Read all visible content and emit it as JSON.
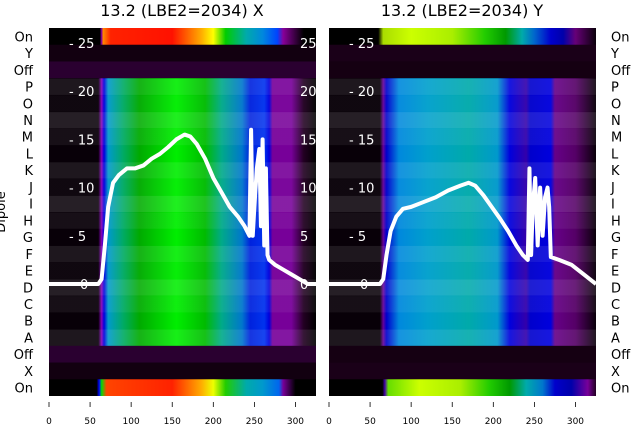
{
  "chart_data": {
    "type": "heatmap",
    "ylabel": "Dipole",
    "row_labels": [
      "On",
      "Y",
      "Off",
      "P",
      "O",
      "N",
      "M",
      "L",
      "K",
      "J",
      "I",
      "H",
      "G",
      "F",
      "E",
      "D",
      "C",
      "B",
      "A",
      "Off",
      "X",
      "On"
    ],
    "xlim": [
      0,
      325
    ],
    "x_ticks": [
      0,
      50,
      100,
      150,
      200,
      250,
      300
    ],
    "line_ylim": [
      0,
      25
    ],
    "line_y_ticks": [
      0,
      5,
      10,
      15,
      20,
      25
    ],
    "panels": [
      {
        "title": "13.2 (LBE2=2034) X",
        "row_kinds": [
          "on",
          "dark",
          "off",
          "main",
          "main",
          "main",
          "main",
          "main",
          "main",
          "main",
          "main",
          "main",
          "main",
          "main",
          "main",
          "main",
          "main",
          "main",
          "main",
          "off",
          "dark",
          "on"
        ],
        "on_top_stops": [
          [
            0,
            "#000000"
          ],
          [
            62,
            "#000000"
          ],
          [
            64,
            "#8800aa"
          ],
          [
            66,
            "#ff8800"
          ],
          [
            75,
            "#ff2200"
          ],
          [
            150,
            "#ff1100"
          ],
          [
            185,
            "#ffaa00"
          ],
          [
            200,
            "#ffff00"
          ],
          [
            215,
            "#00cc00"
          ],
          [
            240,
            "#00aaaa"
          ],
          [
            260,
            "#0088dd"
          ],
          [
            278,
            "#0044ff"
          ],
          [
            285,
            "#880099"
          ],
          [
            310,
            "#000000"
          ],
          [
            325,
            "#000000"
          ]
        ],
        "on_bottom_stops": [
          [
            0,
            "#000000"
          ],
          [
            58,
            "#000000"
          ],
          [
            61,
            "#0000ff"
          ],
          [
            64,
            "#00dd00"
          ],
          [
            70,
            "#ff4400"
          ],
          [
            150,
            "#ff2200"
          ],
          [
            185,
            "#ffaa00"
          ],
          [
            200,
            "#eeff00"
          ],
          [
            215,
            "#22cc00"
          ],
          [
            240,
            "#00aaaa"
          ],
          [
            260,
            "#0099cc"
          ],
          [
            280,
            "#0066ee"
          ],
          [
            285,
            "#770099"
          ],
          [
            300,
            "#000000"
          ],
          [
            325,
            "#000000"
          ]
        ],
        "main_stops": [
          [
            0,
            "#080008"
          ],
          [
            60,
            "#080008"
          ],
          [
            64,
            "#8800bb"
          ],
          [
            67,
            "#0000dd"
          ],
          [
            72,
            "#0099cc"
          ],
          [
            90,
            "#00aa66"
          ],
          [
            110,
            "#00aa00"
          ],
          [
            155,
            "#00ee00"
          ],
          [
            190,
            "#00bb00"
          ],
          [
            210,
            "#00aa88"
          ],
          [
            235,
            "#0077cc"
          ],
          [
            245,
            "#0022dd"
          ],
          [
            262,
            "#0033ee"
          ],
          [
            268,
            "#0000dd"
          ],
          [
            272,
            "#770099"
          ],
          [
            295,
            "#770099"
          ],
          [
            310,
            "#220022"
          ],
          [
            325,
            "#000000"
          ]
        ],
        "off_color": "#2a0030",
        "dark_color": "#120010",
        "line": {
          "x": [
            0,
            60,
            64,
            68,
            72,
            78,
            85,
            95,
            105,
            115,
            125,
            135,
            145,
            155,
            165,
            172,
            180,
            190,
            200,
            210,
            220,
            230,
            238,
            244,
            246,
            248,
            250,
            253,
            256,
            258,
            260,
            262,
            264,
            266,
            268,
            275,
            285,
            295,
            305,
            315,
            325
          ],
          "y": [
            0,
            0,
            0.5,
            4,
            8,
            10.5,
            11.3,
            12,
            12,
            12.3,
            13,
            13.5,
            14.2,
            15,
            15.5,
            15.3,
            14.5,
            13,
            11,
            9.5,
            8,
            7,
            6,
            5,
            16,
            5,
            8,
            12,
            14,
            6,
            15,
            4,
            12,
            3,
            2.5,
            2,
            1.5,
            1,
            0.5,
            0,
            0
          ]
        }
      },
      {
        "title": "13.2 (LBE2=2034) Y",
        "row_kinds": [
          "on",
          "dark",
          "off",
          "main",
          "main",
          "main",
          "main",
          "main",
          "main",
          "main",
          "main",
          "main",
          "main",
          "main",
          "main",
          "main",
          "main",
          "main",
          "main",
          "off",
          "dark",
          "on"
        ],
        "on_top_stops": [
          [
            0,
            "#000000"
          ],
          [
            60,
            "#000000"
          ],
          [
            66,
            "#aadd00"
          ],
          [
            100,
            "#ccff00"
          ],
          [
            150,
            "#aaee00"
          ],
          [
            190,
            "#22cc00"
          ],
          [
            215,
            "#009900"
          ],
          [
            235,
            "#00aaaa"
          ],
          [
            250,
            "#0066cc"
          ],
          [
            270,
            "#0000cc"
          ],
          [
            285,
            "#0000aa"
          ],
          [
            300,
            "#660077"
          ],
          [
            325,
            "#0a000a"
          ]
        ],
        "on_bottom_stops": [
          [
            0,
            "#000000"
          ],
          [
            65,
            "#000000"
          ],
          [
            68,
            "#4400aa"
          ],
          [
            72,
            "#66dd00"
          ],
          [
            110,
            "#ccff00"
          ],
          [
            160,
            "#aaee00"
          ],
          [
            195,
            "#22cc00"
          ],
          [
            220,
            "#009900"
          ],
          [
            240,
            "#00aaaa"
          ],
          [
            260,
            "#0077cc"
          ],
          [
            275,
            "#0000cc"
          ],
          [
            295,
            "#0000aa"
          ],
          [
            315,
            "#770099"
          ],
          [
            325,
            "#220022"
          ]
        ],
        "main_stops": [
          [
            0,
            "#080008"
          ],
          [
            62,
            "#080008"
          ],
          [
            66,
            "#660099"
          ],
          [
            70,
            "#0000cc"
          ],
          [
            85,
            "#0088dd"
          ],
          [
            120,
            "#00a0cc"
          ],
          [
            170,
            "#00aaaa"
          ],
          [
            205,
            "#0099cc"
          ],
          [
            220,
            "#0000dd"
          ],
          [
            240,
            "#3300aa"
          ],
          [
            245,
            "#0000cc"
          ],
          [
            270,
            "#0000dd"
          ],
          [
            275,
            "#660088"
          ],
          [
            300,
            "#550066"
          ],
          [
            325,
            "#0a000a"
          ]
        ],
        "off_color": "#150012",
        "dark_color": "#1a0018",
        "line": {
          "x": [
            0,
            62,
            66,
            70,
            75,
            82,
            90,
            100,
            115,
            130,
            145,
            160,
            170,
            178,
            188,
            198,
            208,
            218,
            228,
            236,
            242,
            244,
            246,
            248,
            251,
            254,
            257,
            260,
            263,
            266,
            268,
            270,
            280,
            295,
            310,
            325
          ],
          "y": [
            0,
            0,
            0.5,
            3,
            5.5,
            7,
            7.8,
            8,
            8.5,
            9,
            9.7,
            10.2,
            10.5,
            10.2,
            9.2,
            8,
            6.8,
            5.5,
            4,
            3,
            2.5,
            12,
            3,
            8,
            11,
            4,
            10,
            5,
            9,
            10,
            8,
            2.8,
            2.5,
            2,
            1,
            0
          ]
        }
      }
    ]
  }
}
